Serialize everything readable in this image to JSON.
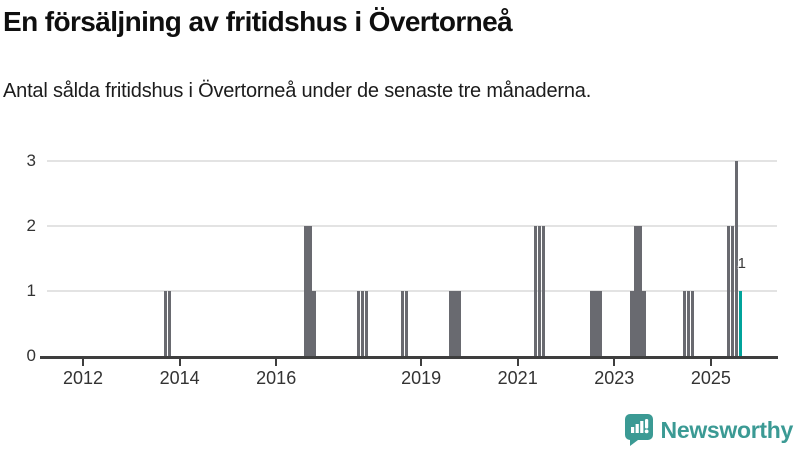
{
  "header": {
    "title": "En försäljning av fritidshus i Övertorneå",
    "subtitle": "Antal sålda fritidshus i Övertorneå under de senaste tre månaderna."
  },
  "chart_data": {
    "type": "bar",
    "title": "En försäljning av fritidshus i Övertorneå",
    "subtitle": "Antal sålda fritidshus i Övertorneå under de senaste tre månaderna.",
    "xlabel": "",
    "ylabel": "",
    "ylim": [
      0,
      3
    ],
    "yticks": [
      0,
      1,
      2,
      3
    ],
    "xticks": [
      2012,
      2014,
      2016,
      2019,
      2021,
      2023,
      2025
    ],
    "grid": "horizontal",
    "legend": "none",
    "bars": [
      {
        "month": "2013-09",
        "value": 1
      },
      {
        "month": "2013-10",
        "value": 1
      },
      {
        "month": "2016-08",
        "value": 2
      },
      {
        "month": "2016-09",
        "value": 2
      },
      {
        "month": "2016-10",
        "value": 1
      },
      {
        "month": "2017-09",
        "value": 1
      },
      {
        "month": "2017-10",
        "value": 1
      },
      {
        "month": "2017-11",
        "value": 1
      },
      {
        "month": "2018-08",
        "value": 1
      },
      {
        "month": "2018-09",
        "value": 1
      },
      {
        "month": "2019-08",
        "value": 1
      },
      {
        "month": "2019-09",
        "value": 1
      },
      {
        "month": "2019-10",
        "value": 1
      },
      {
        "month": "2021-05",
        "value": 2
      },
      {
        "month": "2021-06",
        "value": 2
      },
      {
        "month": "2021-07",
        "value": 2
      },
      {
        "month": "2022-07",
        "value": 1
      },
      {
        "month": "2022-08",
        "value": 1
      },
      {
        "month": "2022-09",
        "value": 1
      },
      {
        "month": "2023-05",
        "value": 1
      },
      {
        "month": "2023-06",
        "value": 2
      },
      {
        "month": "2023-07",
        "value": 2
      },
      {
        "month": "2023-08",
        "value": 1
      },
      {
        "month": "2024-06",
        "value": 1
      },
      {
        "month": "2024-07",
        "value": 1
      },
      {
        "month": "2024-08",
        "value": 1
      },
      {
        "month": "2025-05",
        "value": 2
      },
      {
        "month": "2025-06",
        "value": 2
      },
      {
        "month": "2025-07",
        "value": 3
      },
      {
        "month": "2025-08",
        "value": 1,
        "highlight": true,
        "label": "1"
      }
    ],
    "colors": {
      "bar": "#696a70",
      "highlight": "#00a39b",
      "axis": "#3e3e3e",
      "gridline": "#e3e3e3"
    }
  },
  "footer": {
    "brand": "Newsworthy",
    "brand_color": "#3b9a94"
  }
}
